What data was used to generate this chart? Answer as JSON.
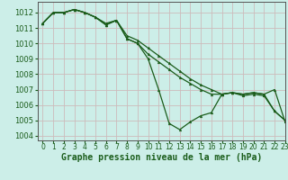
{
  "bg_color": "#cceee8",
  "grid_color": "#ccbbbb",
  "line_color": "#1a5c1a",
  "xlabel": "Graphe pression niveau de la mer (hPa)",
  "xlim": [
    -0.5,
    23
  ],
  "ylim": [
    1003.7,
    1012.7
  ],
  "yticks": [
    1004,
    1005,
    1006,
    1007,
    1008,
    1009,
    1010,
    1011,
    1012
  ],
  "xticks": [
    0,
    1,
    2,
    3,
    4,
    5,
    6,
    7,
    8,
    9,
    10,
    11,
    12,
    13,
    14,
    15,
    16,
    17,
    18,
    19,
    20,
    21,
    22,
    23
  ],
  "series1": [
    1011.3,
    1012.0,
    1012.0,
    1012.2,
    1012.0,
    1011.7,
    1011.2,
    1011.5,
    1010.3,
    1010.0,
    1009.0,
    1007.0,
    1004.8,
    1004.4,
    1004.9,
    1005.3,
    1005.5,
    1006.7,
    1006.8,
    1006.7,
    1006.8,
    1006.7,
    1007.0,
    1004.9
  ],
  "series2": [
    1011.3,
    1012.0,
    1012.0,
    1012.2,
    1012.0,
    1011.7,
    1011.2,
    1011.5,
    1010.3,
    1010.0,
    1009.3,
    1008.8,
    1008.3,
    1007.8,
    1007.4,
    1007.0,
    1006.7,
    1006.7,
    1006.8,
    1006.6,
    1006.7,
    1006.6,
    1005.6,
    1005.0
  ],
  "series3": [
    1011.3,
    1012.0,
    1012.0,
    1012.2,
    1012.0,
    1011.7,
    1011.3,
    1011.5,
    1010.5,
    1010.2,
    1009.7,
    1009.2,
    1008.7,
    1008.2,
    1007.7,
    1007.3,
    1007.0,
    1006.7,
    1006.8,
    1006.7,
    1006.8,
    1006.7,
    1005.6,
    1005.0
  ],
  "marker_size": 2.0,
  "line_width": 0.9,
  "xlabel_fontsize": 7.0,
  "tick_fontsize": 5.5
}
